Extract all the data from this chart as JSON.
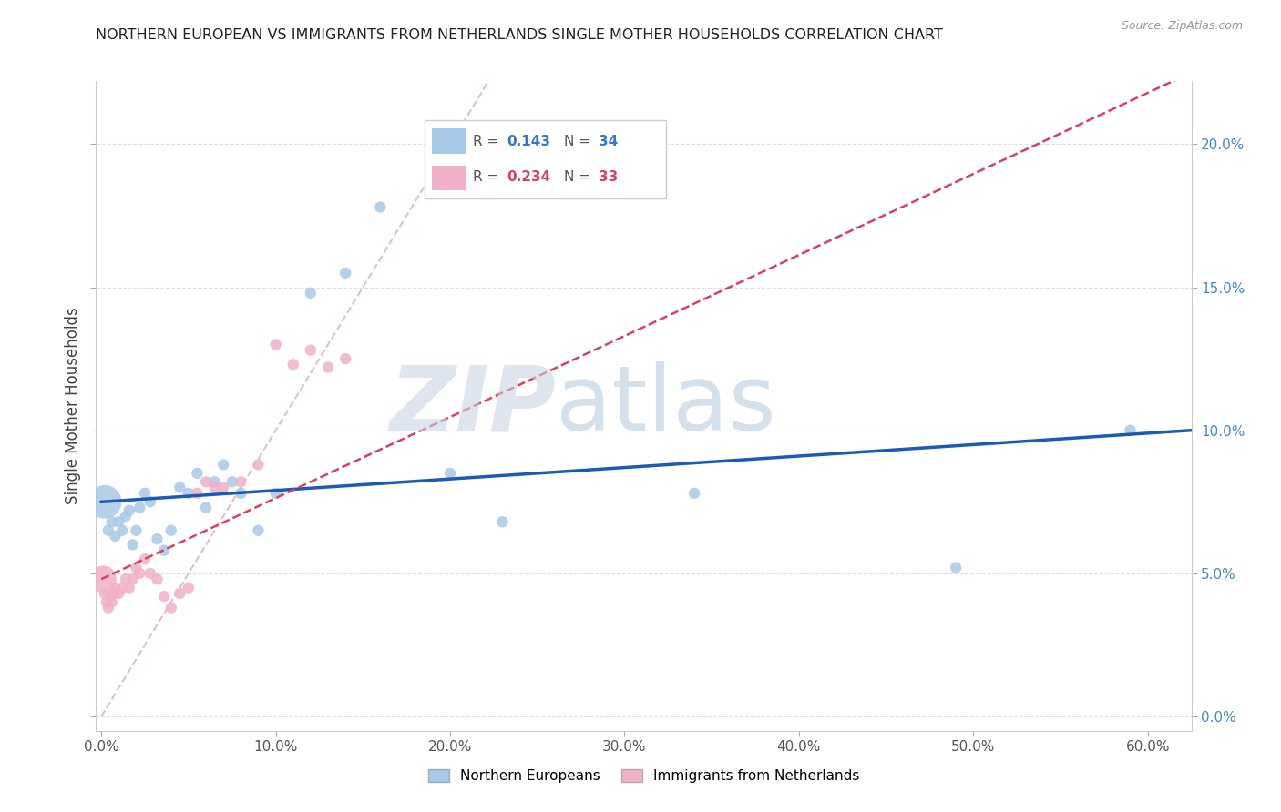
{
  "title": "NORTHERN EUROPEAN VS IMMIGRANTS FROM NETHERLANDS SINGLE MOTHER HOUSEHOLDS CORRELATION CHART",
  "source": "Source: ZipAtlas.com",
  "ylabel": "Single Mother Households",
  "legend_label1": "Northern Europeans",
  "legend_label2": "Immigrants from Netherlands",
  "R1": 0.143,
  "N1": 34,
  "R2": 0.234,
  "N2": 33,
  "xlim": [
    -0.003,
    0.625
  ],
  "ylim": [
    -0.005,
    0.222
  ],
  "xlabel_vals": [
    0.0,
    0.1,
    0.2,
    0.3,
    0.4,
    0.5,
    0.6
  ],
  "ylabel_vals": [
    0.0,
    0.05,
    0.1,
    0.15,
    0.2
  ],
  "color_blue": "#a8c8e8",
  "color_pink": "#f0b0c8",
  "color_trend_blue": "#1a5cb5",
  "color_trend_pink": "#d84060",
  "color_refline": "#e0c0c8",
  "watermark_zip": "ZIP",
  "watermark_atlas": "atlas",
  "watermark_color_zip": "#c8d4e4",
  "watermark_color_atlas": "#b8cce0",
  "blue_x": [
    0.002,
    0.004,
    0.006,
    0.008,
    0.01,
    0.012,
    0.014,
    0.016,
    0.018,
    0.02,
    0.022,
    0.025,
    0.028,
    0.032,
    0.036,
    0.04,
    0.045,
    0.05,
    0.055,
    0.06,
    0.065,
    0.07,
    0.075,
    0.08,
    0.09,
    0.1,
    0.12,
    0.14,
    0.16,
    0.2,
    0.23,
    0.34,
    0.49,
    0.59
  ],
  "blue_y": [
    0.075,
    0.065,
    0.068,
    0.063,
    0.068,
    0.065,
    0.07,
    0.072,
    0.06,
    0.065,
    0.073,
    0.078,
    0.075,
    0.062,
    0.058,
    0.065,
    0.08,
    0.078,
    0.085,
    0.073,
    0.082,
    0.088,
    0.082,
    0.078,
    0.065,
    0.078,
    0.148,
    0.155,
    0.178,
    0.085,
    0.068,
    0.078,
    0.052,
    0.1
  ],
  "blue_sizes": [
    700,
    80,
    80,
    80,
    80,
    80,
    80,
    80,
    80,
    80,
    80,
    80,
    80,
    80,
    80,
    80,
    80,
    80,
    80,
    80,
    80,
    80,
    80,
    80,
    80,
    80,
    80,
    80,
    80,
    80,
    80,
    80,
    80,
    80
  ],
  "pink_x": [
    0.001,
    0.002,
    0.003,
    0.004,
    0.005,
    0.006,
    0.007,
    0.008,
    0.01,
    0.012,
    0.014,
    0.016,
    0.018,
    0.02,
    0.022,
    0.025,
    0.028,
    0.032,
    0.036,
    0.04,
    0.045,
    0.05,
    0.055,
    0.06,
    0.065,
    0.07,
    0.08,
    0.09,
    0.1,
    0.11,
    0.12,
    0.13,
    0.14
  ],
  "pink_y": [
    0.048,
    0.043,
    0.04,
    0.038,
    0.042,
    0.04,
    0.043,
    0.045,
    0.043,
    0.045,
    0.048,
    0.045,
    0.048,
    0.052,
    0.05,
    0.055,
    0.05,
    0.048,
    0.042,
    0.038,
    0.043,
    0.045,
    0.078,
    0.082,
    0.08,
    0.08,
    0.082,
    0.088,
    0.13,
    0.123,
    0.128,
    0.122,
    0.125
  ],
  "pink_sizes": [
    450,
    80,
    80,
    80,
    80,
    80,
    80,
    80,
    80,
    80,
    80,
    80,
    80,
    80,
    80,
    80,
    80,
    80,
    80,
    80,
    80,
    80,
    80,
    80,
    80,
    80,
    80,
    80,
    80,
    80,
    80,
    80,
    80
  ],
  "blue_trend_x": [
    0.0,
    0.625
  ],
  "blue_trend_y_start": 0.075,
  "blue_trend_y_end": 0.1,
  "pink_trend_x": [
    0.0,
    0.625
  ],
  "pink_trend_y_start": 0.048,
  "pink_trend_y_end": 0.225,
  "refline_x": [
    0.0,
    0.222
  ],
  "refline_y": [
    0.0,
    0.222
  ]
}
